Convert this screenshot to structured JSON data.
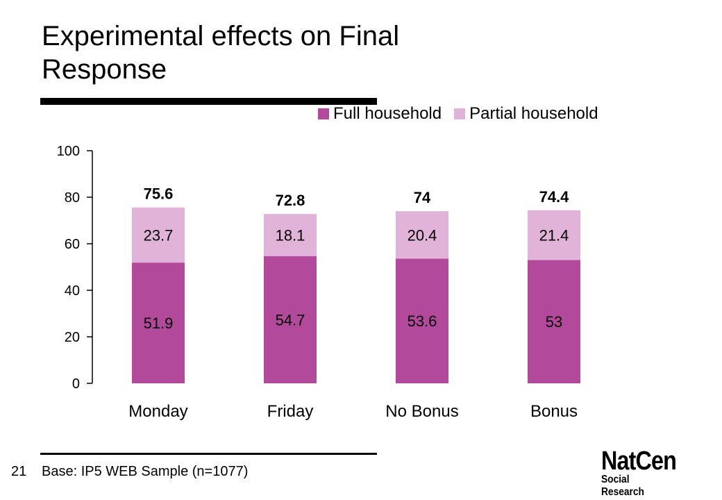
{
  "slide": {
    "title": "Experimental effects on Final Response",
    "page_number": "21",
    "base_note": "Base: IP5 WEB Sample (n=1077)",
    "logo": {
      "main": "NatCen",
      "sub": "Social Research"
    }
  },
  "colors": {
    "full": "#b3499a",
    "partial": "#e2b3d8",
    "axis": "#000000"
  },
  "chart_data": {
    "type": "bar",
    "stacked": true,
    "title": "",
    "xlabel": "",
    "ylabel": "",
    "ylim": [
      0,
      100
    ],
    "yticks": [
      0,
      20,
      40,
      60,
      80,
      100
    ],
    "categories": [
      "Monday",
      "Friday",
      "No Bonus",
      "Bonus"
    ],
    "series": [
      {
        "name": "Full household",
        "values": [
          51.9,
          54.7,
          53.6,
          53
        ]
      },
      {
        "name": "Partial household",
        "values": [
          23.7,
          18.1,
          20.4,
          21.4
        ]
      }
    ],
    "totals": [
      75.6,
      72.8,
      74,
      74.4
    ],
    "legend_position": "top-right",
    "grid": false
  }
}
